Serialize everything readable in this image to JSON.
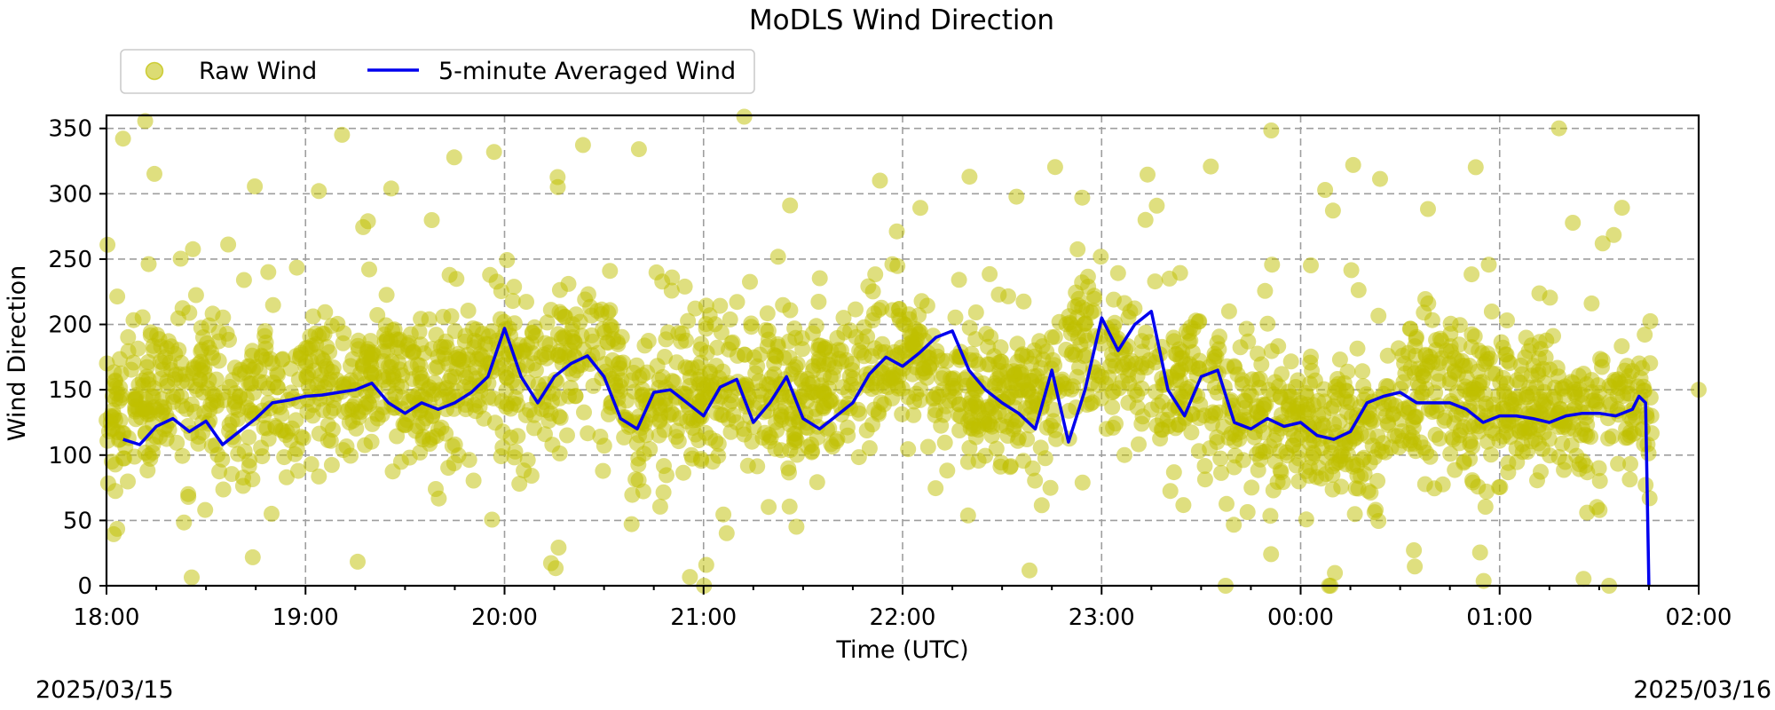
{
  "chart_data": {
    "type": "scatter",
    "title": "MoDLS Wind Direction",
    "xlabel": "Time (UTC)",
    "ylabel": "Wind Direction",
    "xlim": [
      "2025-03-15 18:00",
      "2025-03-16 02:00"
    ],
    "ylim": [
      0,
      360
    ],
    "x_ticks": [
      "18:00",
      "19:00",
      "20:00",
      "21:00",
      "22:00",
      "23:00",
      "00:00",
      "01:00",
      "02:00"
    ],
    "y_ticks": [
      0,
      50,
      100,
      150,
      200,
      250,
      300,
      350
    ],
    "grid": true,
    "legend_position": "top-left, above plot",
    "date_labels": {
      "start": "2025/03/15",
      "end": "2025/03/16"
    },
    "series": [
      {
        "name": "Raw Wind",
        "kind": "scatter",
        "color": "#bfbf00",
        "description_of_spread": "dense points mostly between 50 and 250 around the average, with sparse outliers spanning 0-360",
        "x": [
          "18:00",
          "18:10",
          "18:20",
          "18:30",
          "18:40",
          "18:50",
          "19:00",
          "19:10",
          "19:20",
          "19:30",
          "19:40",
          "19:50",
          "20:00",
          "20:10",
          "20:20",
          "20:30",
          "20:40",
          "20:50",
          "21:00",
          "21:10",
          "21:20",
          "21:30",
          "21:40",
          "21:50",
          "22:00",
          "22:10",
          "22:20",
          "22:30",
          "22:40",
          "22:50",
          "23:00",
          "23:10",
          "23:20",
          "23:30",
          "23:40",
          "23:50",
          "00:00",
          "00:10",
          "00:20",
          "00:30",
          "00:40",
          "00:50",
          "01:00",
          "01:10",
          "01:20",
          "01:30",
          "01:40",
          "01:45"
        ],
        "y": [
          140,
          150,
          145,
          150,
          135,
          145,
          150,
          155,
          160,
          155,
          150,
          160,
          170,
          165,
          170,
          175,
          135,
          150,
          145,
          150,
          140,
          145,
          160,
          165,
          175,
          160,
          150,
          140,
          150,
          175,
          185,
          160,
          150,
          150,
          130,
          130,
          125,
          125,
          120,
          140,
          145,
          145,
          140,
          140,
          135,
          135,
          140,
          135
        ]
      },
      {
        "name": "5-minute Averaged Wind",
        "kind": "line",
        "color": "#0000ee",
        "x": [
          "18:05",
          "18:10",
          "18:15",
          "18:20",
          "18:25",
          "18:30",
          "18:35",
          "18:40",
          "18:45",
          "18:50",
          "18:55",
          "19:00",
          "19:05",
          "19:10",
          "19:15",
          "19:20",
          "19:25",
          "19:30",
          "19:35",
          "19:40",
          "19:45",
          "19:50",
          "19:55",
          "20:00",
          "20:05",
          "20:10",
          "20:15",
          "20:20",
          "20:25",
          "20:30",
          "20:35",
          "20:40",
          "20:45",
          "20:50",
          "20:55",
          "21:00",
          "21:05",
          "21:10",
          "21:15",
          "21:20",
          "21:25",
          "21:30",
          "21:35",
          "21:40",
          "21:45",
          "21:50",
          "21:55",
          "22:00",
          "22:05",
          "22:10",
          "22:15",
          "22:20",
          "22:25",
          "22:30",
          "22:35",
          "22:40",
          "22:45",
          "22:50",
          "22:55",
          "23:00",
          "23:05",
          "23:10",
          "23:15",
          "23:20",
          "23:25",
          "23:30",
          "23:35",
          "23:40",
          "23:45",
          "23:50",
          "23:55",
          "00:00",
          "00:05",
          "00:10",
          "00:15",
          "00:20",
          "00:25",
          "00:30",
          "00:35",
          "00:40",
          "00:45",
          "00:50",
          "00:55",
          "01:00",
          "01:05",
          "01:10",
          "01:15",
          "01:20",
          "01:25",
          "01:30",
          "01:35",
          "01:40",
          "01:42",
          "01:44",
          "01:45"
        ],
        "y": [
          112,
          108,
          122,
          128,
          118,
          126,
          108,
          118,
          128,
          140,
          142,
          145,
          146,
          148,
          150,
          155,
          140,
          132,
          140,
          135,
          140,
          148,
          160,
          197,
          160,
          140,
          160,
          170,
          176,
          160,
          128,
          120,
          148,
          150,
          140,
          130,
          152,
          158,
          125,
          140,
          160,
          128,
          120,
          130,
          140,
          162,
          175,
          168,
          178,
          190,
          195,
          165,
          150,
          140,
          132,
          120,
          165,
          110,
          150,
          205,
          180,
          200,
          210,
          150,
          130,
          160,
          165,
          125,
          120,
          128,
          122,
          125,
          115,
          112,
          118,
          140,
          145,
          148,
          140,
          140,
          140,
          135,
          125,
          130,
          130,
          128,
          125,
          130,
          132,
          132,
          130,
          135,
          145,
          140,
          0
        ]
      }
    ]
  }
}
